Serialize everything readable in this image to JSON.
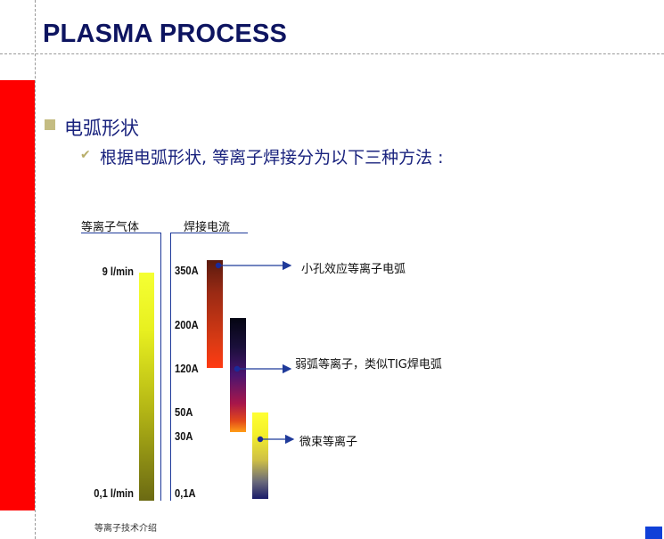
{
  "slide": {
    "title": "PLASMA PROCESS",
    "bullet": "电弧形状",
    "sub_bullet": "根据电弧形状, 等离子焊接分为以下三种方法 :",
    "footer": "等离子技术介绍"
  },
  "diagram": {
    "gas_header": "等离子气体",
    "current_header": "焊接电流",
    "gas_top_label": "9 l/min",
    "gas_bottom_label": "0,1 l/min",
    "current_labels": [
      "350A",
      "200A",
      "120A",
      "50A",
      "30A",
      "0,1A"
    ],
    "callouts": {
      "keyhole": "小孔效应等离子电弧",
      "soft": "弱弧等离子，类似TIG焊电弧",
      "micro": "微束等离子"
    }
  },
  "colors": {
    "title": "#0d1460",
    "accent_bar": "#ff0000",
    "arrow": "#1f3a9a",
    "corner": "#1040d8"
  }
}
